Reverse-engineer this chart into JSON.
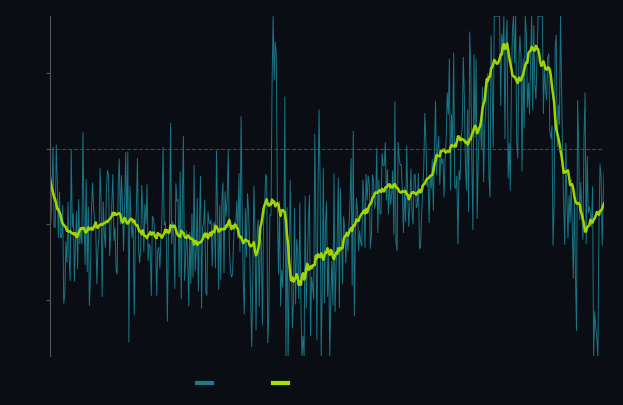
{
  "background_color": "#0a0e14",
  "line1_color": "#1a7a8a",
  "line2_color": "#aadd00",
  "zero_line_color": "#555555",
  "axis_color": "#555555",
  "tick_color": "#555555",
  "n_points": 520,
  "ylim": [
    -5.5,
    3.5
  ],
  "legend1_color": "#1a7a8a",
  "legend2_color": "#aadd00"
}
